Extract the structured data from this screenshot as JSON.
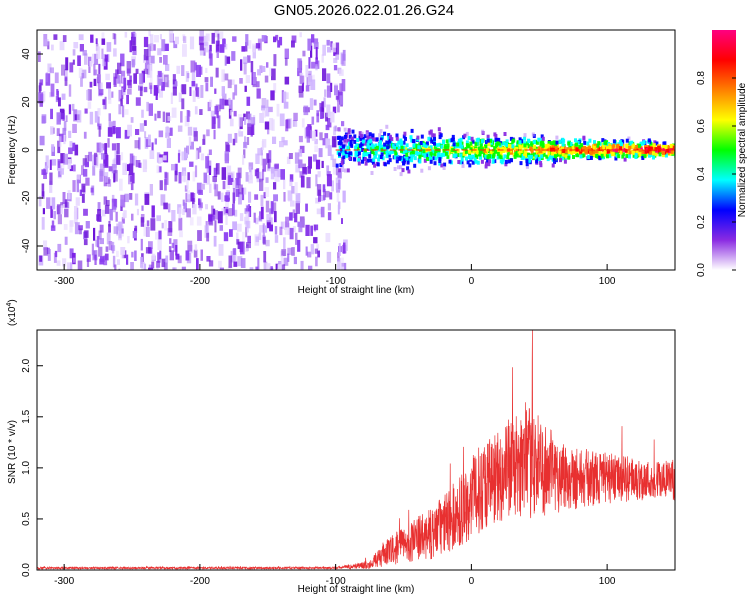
{
  "title": "GN05.2026.022.01.26.G24",
  "chart_data": [
    {
      "type": "heatmap",
      "name": "spectrogram",
      "xlabel": "Height of straight line (km)",
      "ylabel": "Frequency (Hz)",
      "xlim": [
        -320,
        150
      ],
      "ylim": [
        -50,
        50
      ],
      "xticks": [
        -300,
        -200,
        -100,
        0,
        100
      ],
      "yticks": [
        -40,
        -20,
        0,
        20,
        40
      ],
      "noise_region_x": [
        -320,
        -100
      ],
      "signal_region_x": [
        -100,
        150
      ],
      "signal_center_freq_hz": 0,
      "colorbar": {
        "label": "Normalized spectral amplitude",
        "range": [
          0.0,
          1.0
        ],
        "ticks": [
          0.0,
          0.2,
          0.4,
          0.6,
          0.8
        ],
        "colors": [
          "#ffffff",
          "#8a2be2",
          "#0000ff",
          "#00ffff",
          "#00ff00",
          "#ffff00",
          "#ff8000",
          "#ff0000",
          "#ff0080"
        ]
      }
    },
    {
      "type": "line",
      "name": "snr",
      "xlabel": "Height of straight line (km)",
      "ylabel": "SNR (10 * v/v)",
      "scale_label": "(x10",
      "scale_exp": "4",
      "scale_close": ")",
      "xlim": [
        -320,
        150
      ],
      "ylim": [
        0,
        2.35
      ],
      "xticks": [
        -300,
        -200,
        -100,
        0,
        100
      ],
      "yticks": [
        0.0,
        0.5,
        1.0,
        1.5,
        2.0
      ],
      "ytick_labels": [
        "0.0",
        "0.5",
        "1.0",
        "1.5",
        "2.0"
      ],
      "color": "#e83030",
      "envelope": [
        {
          "x": -320,
          "mean": 0.02,
          "spread": 0.01
        },
        {
          "x": -100,
          "mean": 0.02,
          "spread": 0.01
        },
        {
          "x": -75,
          "mean": 0.05,
          "spread": 0.04
        },
        {
          "x": -65,
          "mean": 0.15,
          "spread": 0.12
        },
        {
          "x": -50,
          "mean": 0.25,
          "spread": 0.18
        },
        {
          "x": -30,
          "mean": 0.35,
          "spread": 0.25
        },
        {
          "x": -10,
          "mean": 0.55,
          "spread": 0.35
        },
        {
          "x": 10,
          "mean": 0.85,
          "spread": 0.45
        },
        {
          "x": 30,
          "mean": 1.0,
          "spread": 0.5
        },
        {
          "x": 45,
          "mean": 1.05,
          "spread": 0.55
        },
        {
          "x": 60,
          "mean": 0.95,
          "spread": 0.4
        },
        {
          "x": 80,
          "mean": 0.9,
          "spread": 0.3
        },
        {
          "x": 100,
          "mean": 0.9,
          "spread": 0.25
        },
        {
          "x": 130,
          "mean": 0.88,
          "spread": 0.2
        },
        {
          "x": 150,
          "mean": 0.88,
          "spread": 0.2
        }
      ],
      "peak": {
        "x": 45,
        "y": 2.35
      }
    }
  ]
}
